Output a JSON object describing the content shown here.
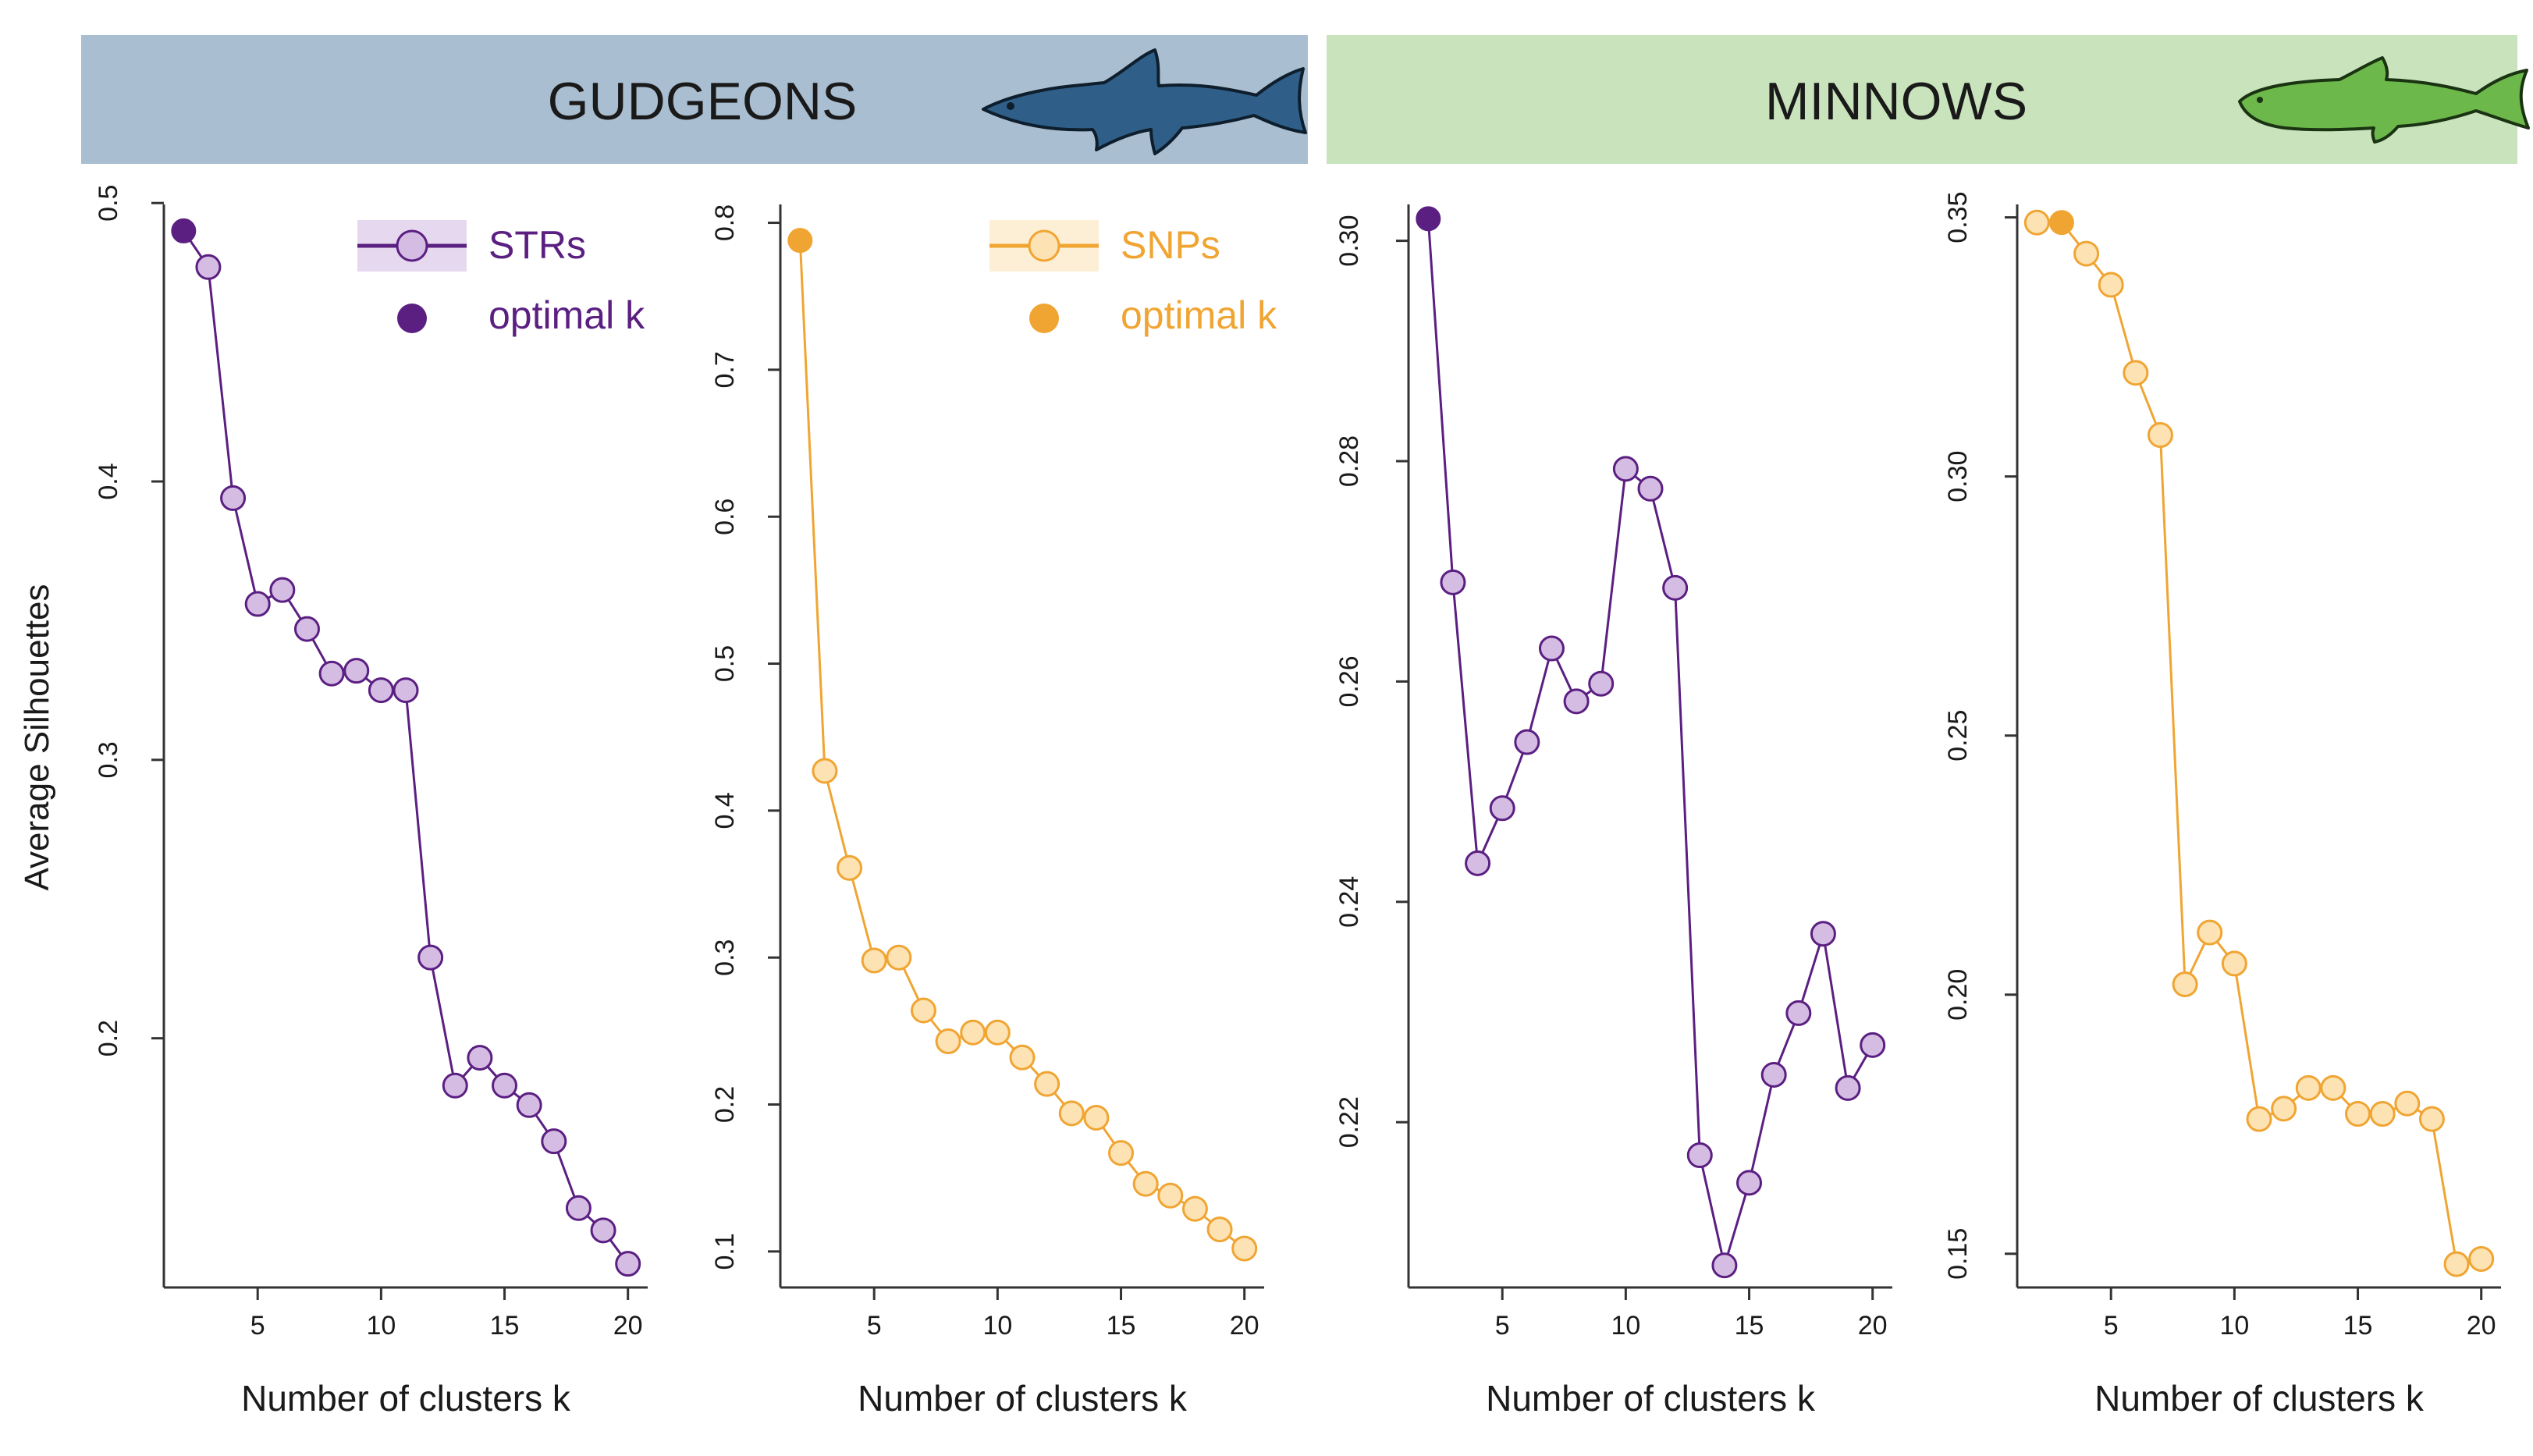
{
  "groups": [
    {
      "label": "GUDGEONS",
      "color": "#a9bed0",
      "fish_color": "#2f5f88"
    },
    {
      "label": "MINNOWS",
      "color": "#c9e4bd",
      "fish_color": "#6db84a"
    }
  ],
  "y_axis_label": "Average Silhouettes",
  "legends": {
    "strs": {
      "series_label": "STRs",
      "optimal_label": "optimal k",
      "text_color": "#5b1f82"
    },
    "snps": {
      "series_label": "SNPs",
      "optimal_label": "optimal k",
      "text_color": "#f0a533"
    }
  },
  "colors": {
    "str_line": "#5b1f82",
    "str_fill": "#d4bce3",
    "str_optimal": "#5b1f82",
    "snp_line": "#f0a533",
    "snp_fill": "#fde2b4",
    "snp_optimal": "#f0a533"
  },
  "chart_data": [
    {
      "type": "line",
      "group": "GUDGEONS",
      "series_name": "STRs",
      "xlabel": "Number of clusters k",
      "ylabel": "Average Silhouettes",
      "x": [
        2,
        3,
        4,
        5,
        6,
        7,
        8,
        9,
        10,
        11,
        12,
        13,
        14,
        15,
        16,
        17,
        18,
        19,
        20
      ],
      "values": [
        0.49,
        0.477,
        0.394,
        0.356,
        0.361,
        0.347,
        0.331,
        0.332,
        0.325,
        0.325,
        0.229,
        0.183,
        0.193,
        0.183,
        0.176,
        0.163,
        0.139,
        0.131,
        0.119
      ],
      "optimal_k": 2,
      "xlim": [
        1.2,
        20.8
      ],
      "ylim": [
        0.1105,
        0.4995
      ],
      "xticks": [
        5,
        10,
        15,
        20
      ],
      "yticks": [
        0.2,
        0.3,
        0.4,
        0.5
      ],
      "ytick_labels": [
        "0.2",
        "0.3",
        "0.4",
        "0.5"
      ],
      "legend": "top-right"
    },
    {
      "type": "line",
      "group": "GUDGEONS",
      "series_name": "SNPs",
      "xlabel": "Number of clusters k",
      "ylabel": "",
      "x": [
        2,
        3,
        4,
        5,
        6,
        7,
        8,
        9,
        10,
        11,
        12,
        13,
        14,
        15,
        16,
        17,
        18,
        19,
        20
      ],
      "values": [
        0.788,
        0.427,
        0.361,
        0.298,
        0.3,
        0.264,
        0.243,
        0.249,
        0.249,
        0.232,
        0.214,
        0.194,
        0.191,
        0.167,
        0.146,
        0.138,
        0.129,
        0.115,
        0.102
      ],
      "optimal_k": 2,
      "xlim": [
        1.2,
        20.8
      ],
      "ylim": [
        0.0755,
        0.8125
      ],
      "xticks": [
        5,
        10,
        15,
        20
      ],
      "yticks": [
        0.1,
        0.2,
        0.3,
        0.4,
        0.5,
        0.6,
        0.7,
        0.8
      ],
      "ytick_labels": [
        "0.1",
        "0.2",
        "0.3",
        "0.4",
        "0.5",
        "0.6",
        "0.7",
        "0.8"
      ],
      "legend": "top-right"
    },
    {
      "type": "line",
      "group": "MINNOWS",
      "series_name": "STRs",
      "xlabel": "Number of clusters k",
      "ylabel": "",
      "x": [
        2,
        3,
        4,
        5,
        6,
        7,
        8,
        9,
        10,
        11,
        12,
        13,
        14,
        15,
        16,
        17,
        18,
        19,
        20
      ],
      "values": [
        0.302,
        0.269,
        0.2435,
        0.2485,
        0.2545,
        0.263,
        0.2582,
        0.2598,
        0.2793,
        0.2775,
        0.2685,
        0.217,
        0.207,
        0.2145,
        0.2243,
        0.2299,
        0.2371,
        0.2231,
        0.227
      ],
      "optimal_k": 2,
      "xlim": [
        1.2,
        20.8
      ],
      "ylim": [
        0.205,
        0.3033
      ],
      "xticks": [
        5,
        10,
        15,
        20
      ],
      "yticks": [
        0.22,
        0.24,
        0.26,
        0.28,
        0.3
      ],
      "ytick_labels": [
        "0.22",
        "0.24",
        "0.26",
        "0.28",
        "0.30"
      ],
      "legend": "none"
    },
    {
      "type": "line",
      "group": "MINNOWS",
      "series_name": "SNPs",
      "xlabel": "Number of clusters k",
      "ylabel": "",
      "x": [
        2,
        3,
        4,
        5,
        6,
        7,
        8,
        9,
        10,
        11,
        12,
        13,
        14,
        15,
        16,
        17,
        18,
        19,
        20
      ],
      "values": [
        0.349,
        0.349,
        0.343,
        0.337,
        0.32,
        0.308,
        0.202,
        0.212,
        0.206,
        0.176,
        0.178,
        0.182,
        0.182,
        0.177,
        0.177,
        0.179,
        0.176,
        0.148,
        0.149
      ],
      "optimal_k": 3,
      "xlim": [
        1.2,
        20.8
      ],
      "ylim": [
        0.1435,
        0.3525
      ],
      "xticks": [
        5,
        10,
        15,
        20
      ],
      "yticks": [
        0.15,
        0.2,
        0.25,
        0.3,
        0.35
      ],
      "ytick_labels": [
        "0.15",
        "0.20",
        "0.25",
        "0.30",
        "0.35"
      ],
      "legend": "none"
    }
  ]
}
